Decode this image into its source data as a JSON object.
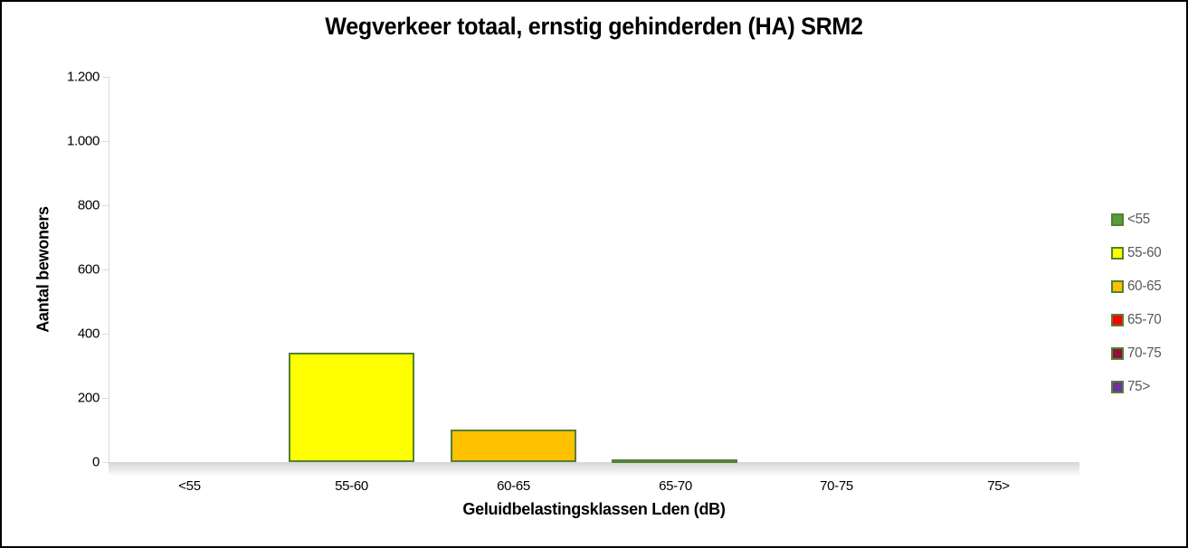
{
  "window": {
    "background_color": "#FFFFFF",
    "frame_border_color": "#000000"
  },
  "chart_data": {
    "type": "bar",
    "title": "Wegverkeer totaal, ernstig gehinderden (HA) SRM2",
    "xlabel": "Geluidbelastingsklassen Lden (dB)",
    "ylabel": "Aantal bewoners",
    "categories": [
      "<55",
      "55-60",
      "60-65",
      "65-70",
      "70-75",
      "75>"
    ],
    "values": [
      0,
      340,
      100,
      7,
      0,
      0
    ],
    "series_colors": [
      "#5B9B3C",
      "#FFFF00",
      "#FFC000",
      "#FF0000",
      "#8C1237",
      "#7030A0"
    ],
    "bar_border_color": "#538135",
    "ylim": [
      0,
      1200
    ],
    "ytick_labels_top_down": [
      "1.200",
      "1.000",
      "800",
      "600",
      "400",
      "200",
      "0"
    ],
    "grid": "horizontal",
    "gridline_color": "#D9D9D9",
    "legend_position": "right",
    "legend_entries": [
      "<55",
      "55-60",
      "60-65",
      "65-70",
      "70-75",
      "75>"
    ],
    "legend_text_color": "#595959"
  }
}
